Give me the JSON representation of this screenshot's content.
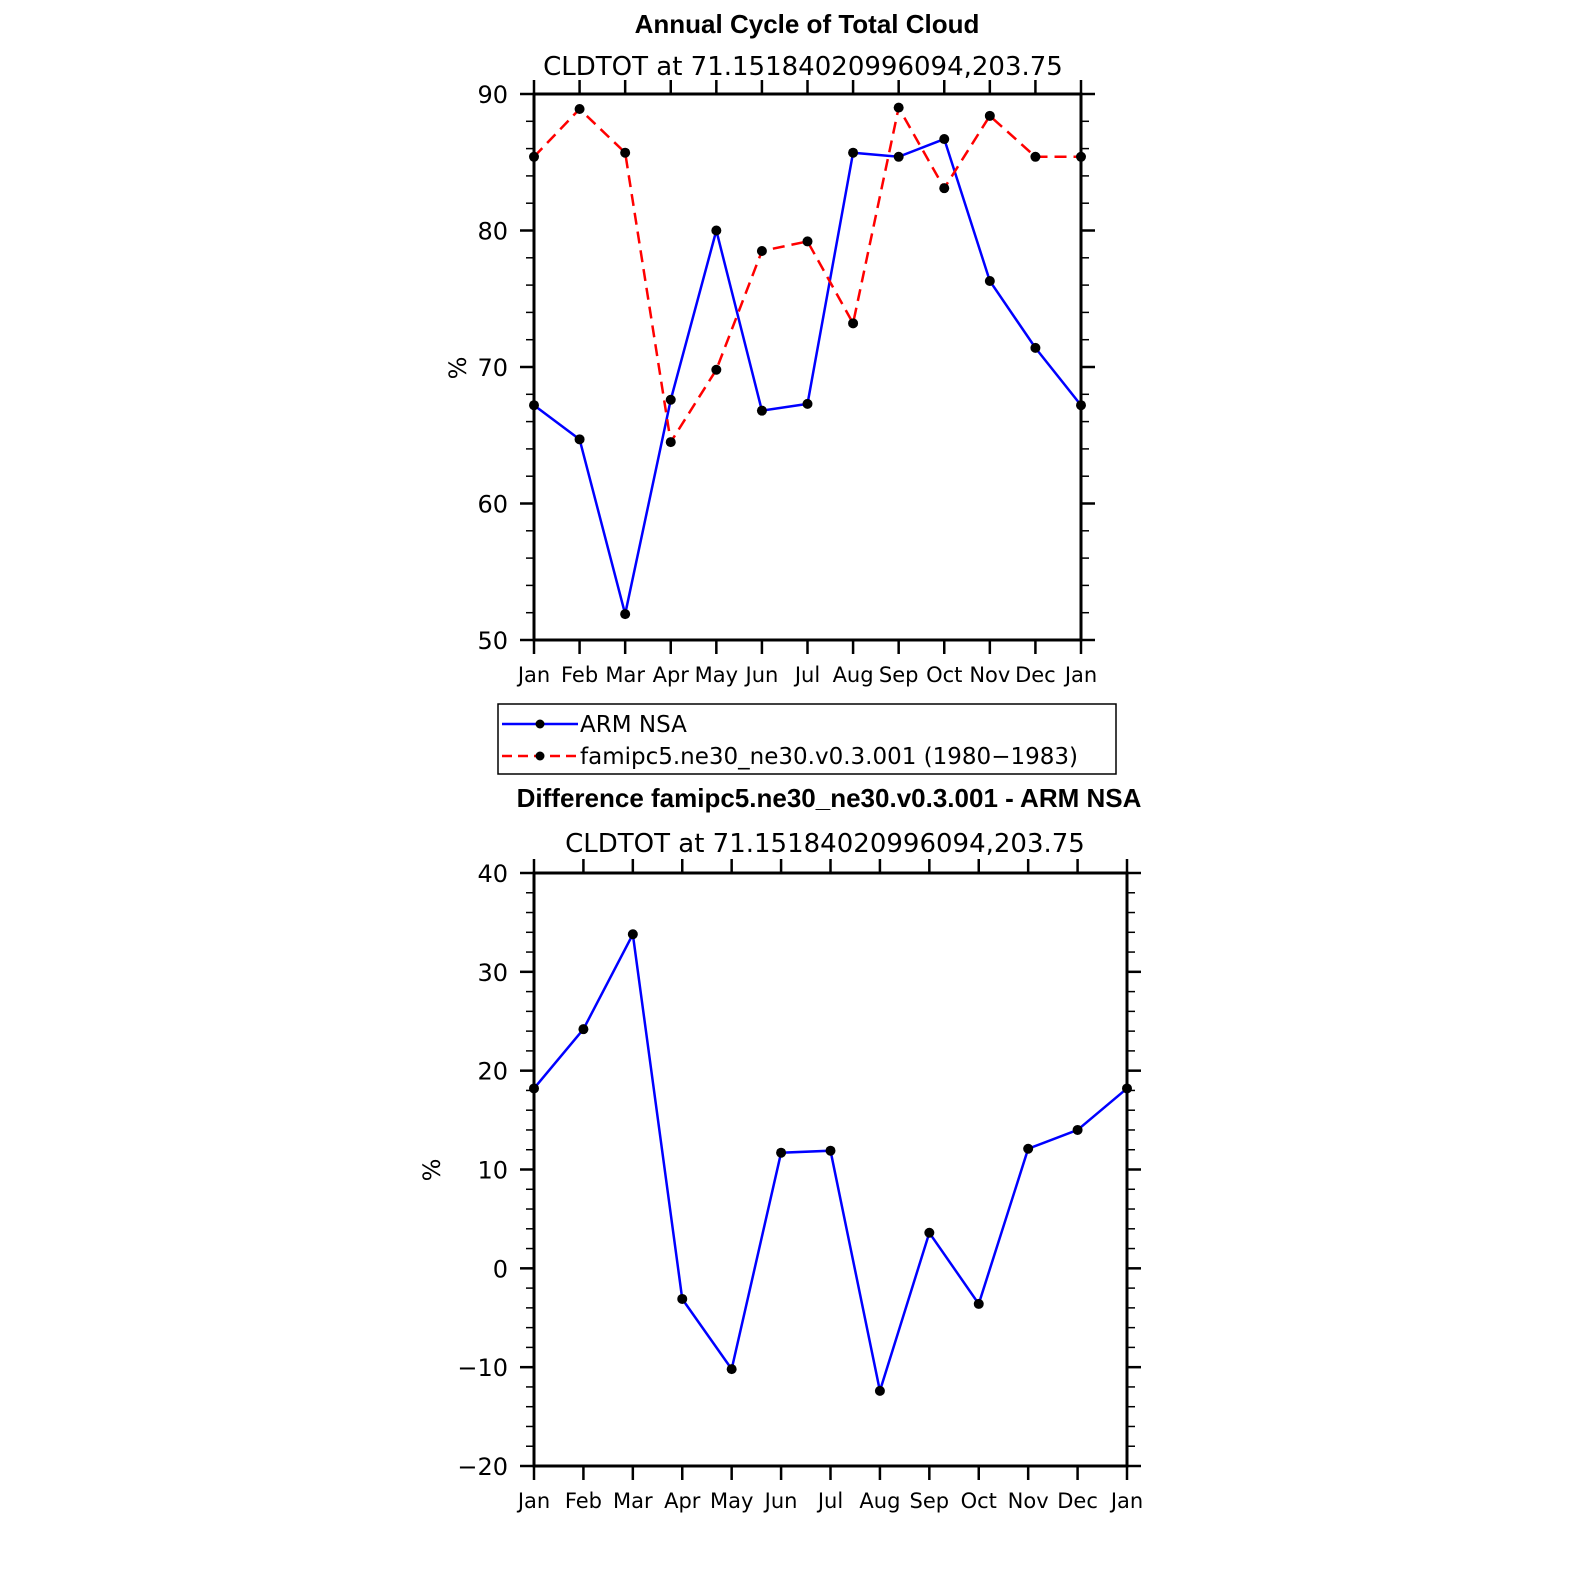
{
  "chart_data": [
    {
      "type": "line",
      "title": "Annual Cycle of Total Cloud",
      "subtitle": "CLDTOT at 71.15184020996094,203.75",
      "ylabel": "%",
      "xlabel": "",
      "ylim": [
        50,
        90
      ],
      "yticks": [
        "50",
        "60",
        "70",
        "80",
        "90"
      ],
      "categories": [
        "Jan",
        "Feb",
        "Mar",
        "Apr",
        "May",
        "Jun",
        "Jul",
        "Aug",
        "Sep",
        "Oct",
        "Nov",
        "Dec",
        "Jan"
      ],
      "series": [
        {
          "name": "ARM NSA",
          "color": "#0000ff",
          "dash": "solid",
          "values": [
            67.2,
            64.7,
            51.9,
            67.6,
            80.0,
            66.8,
            67.3,
            85.7,
            85.4,
            86.7,
            76.3,
            71.4,
            67.2
          ]
        },
        {
          "name": "famipc5.ne30_ne30.v0.3.001 (1980-1983)",
          "color": "#ff0000",
          "dash": "dashed",
          "values": [
            85.4,
            88.9,
            85.7,
            64.5,
            69.8,
            78.5,
            79.2,
            73.2,
            89.0,
            83.1,
            88.4,
            85.4,
            85.4
          ]
        }
      ],
      "legend": {
        "position": "bottom",
        "entries": [
          "ARM NSA",
          "famipc5.ne30_ne30.v0.3.001 (1980−1983)"
        ]
      }
    },
    {
      "type": "line",
      "title": "Difference famipc5.ne30_ne30.v0.3.001 - ARM NSA",
      "subtitle": "CLDTOT at 71.15184020996094,203.75",
      "ylabel": "%",
      "xlabel": "",
      "ylim": [
        -20,
        40
      ],
      "yticks": [
        "−20",
        "−10",
        "0",
        "10",
        "20",
        "30",
        "40"
      ],
      "categories": [
        "Jan",
        "Feb",
        "Mar",
        "Apr",
        "May",
        "Jun",
        "Jul",
        "Aug",
        "Sep",
        "Oct",
        "Nov",
        "Dec",
        "Jan"
      ],
      "series": [
        {
          "name": "Difference",
          "color": "#0000ff",
          "dash": "solid",
          "values": [
            18.2,
            24.2,
            33.8,
            -3.1,
            -10.2,
            11.7,
            11.9,
            -12.4,
            3.6,
            -3.6,
            12.1,
            14.0,
            18.2
          ]
        }
      ]
    }
  ]
}
